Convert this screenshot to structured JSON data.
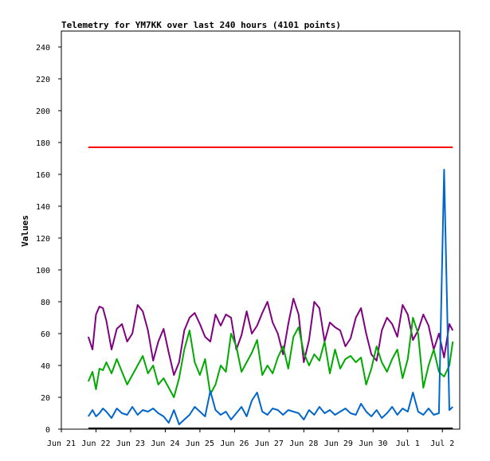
{
  "chart_data": {
    "type": "line",
    "title": "Telemetry for YM7KK over last 240 hours (4101 points)",
    "xlabel": "",
    "ylabel": "Values",
    "ylim": [
      0,
      250
    ],
    "y_ticks": [
      0,
      20,
      40,
      60,
      80,
      100,
      120,
      140,
      160,
      180,
      200,
      220,
      240
    ],
    "x_ticks": [
      "Jun 21",
      "Jun 22",
      "Jun 23",
      "Jun 24",
      "Jun 25",
      "Jun 26",
      "Jun 27",
      "Jun 28",
      "Jun 29",
      "Jun 30",
      "Jul 1",
      "Jul 2"
    ],
    "x_unit": "days from Jun 21 00:00",
    "xlim": [
      0,
      11.5
    ],
    "grid": false,
    "legend": "none",
    "series": [
      {
        "color": "#ff0000",
        "x": [
          0.78,
          11.3
        ],
        "values": [
          177,
          177
        ]
      },
      {
        "color": "#800080",
        "x": [
          0.78,
          0.9,
          1.0,
          1.1,
          1.2,
          1.3,
          1.45,
          1.6,
          1.75,
          1.9,
          2.05,
          2.2,
          2.35,
          2.5,
          2.65,
          2.8,
          2.95,
          3.1,
          3.25,
          3.4,
          3.55,
          3.7,
          3.85,
          4.0,
          4.15,
          4.3,
          4.45,
          4.6,
          4.75,
          4.9,
          5.05,
          5.2,
          5.35,
          5.5,
          5.65,
          5.8,
          5.95,
          6.1,
          6.25,
          6.4,
          6.55,
          6.7,
          6.85,
          7.0,
          7.15,
          7.3,
          7.45,
          7.6,
          7.75,
          7.9,
          8.05,
          8.2,
          8.35,
          8.5,
          8.65,
          8.8,
          8.95,
          9.1,
          9.25,
          9.4,
          9.55,
          9.7,
          9.85,
          10.0,
          10.15,
          10.3,
          10.45,
          10.6,
          10.75,
          10.9,
          11.05,
          11.2,
          11.3
        ],
        "values": [
          58,
          50,
          72,
          77,
          76,
          68,
          50,
          63,
          66,
          55,
          60,
          78,
          74,
          62,
          43,
          55,
          63,
          48,
          34,
          42,
          62,
          70,
          73,
          66,
          58,
          55,
          72,
          65,
          72,
          70,
          50,
          59,
          74,
          60,
          65,
          73,
          80,
          67,
          60,
          47,
          66,
          82,
          72,
          42,
          56,
          80,
          76,
          55,
          67,
          64,
          62,
          52,
          57,
          70,
          76,
          60,
          47,
          43,
          62,
          70,
          66,
          58,
          78,
          72,
          56,
          62,
          72,
          65,
          50,
          60,
          45,
          66,
          62
        ]
      },
      {
        "color": "#00aa00",
        "x": [
          0.78,
          0.9,
          1.0,
          1.1,
          1.2,
          1.3,
          1.45,
          1.6,
          1.75,
          1.9,
          2.05,
          2.2,
          2.35,
          2.5,
          2.65,
          2.8,
          2.95,
          3.1,
          3.25,
          3.4,
          3.55,
          3.7,
          3.85,
          4.0,
          4.15,
          4.3,
          4.45,
          4.6,
          4.75,
          4.9,
          5.05,
          5.2,
          5.35,
          5.5,
          5.65,
          5.8,
          5.95,
          6.1,
          6.25,
          6.4,
          6.55,
          6.7,
          6.85,
          7.0,
          7.15,
          7.3,
          7.45,
          7.6,
          7.75,
          7.9,
          8.05,
          8.2,
          8.35,
          8.5,
          8.65,
          8.8,
          8.95,
          9.1,
          9.25,
          9.4,
          9.55,
          9.7,
          9.85,
          10.0,
          10.15,
          10.3,
          10.45,
          10.6,
          10.75,
          10.9,
          11.05,
          11.2,
          11.3
        ],
        "values": [
          30,
          36,
          25,
          38,
          37,
          42,
          35,
          44,
          36,
          28,
          34,
          40,
          46,
          35,
          40,
          28,
          32,
          26,
          20,
          32,
          50,
          62,
          42,
          34,
          44,
          22,
          28,
          40,
          36,
          60,
          52,
          36,
          42,
          48,
          56,
          34,
          40,
          35,
          45,
          52,
          38,
          58,
          64,
          48,
          40,
          47,
          43,
          55,
          35,
          50,
          38,
          44,
          46,
          42,
          45,
          28,
          38,
          52,
          42,
          36,
          44,
          50,
          32,
          44,
          70,
          60,
          26,
          40,
          50,
          36,
          33,
          40,
          55
        ]
      },
      {
        "color": "#0066cc",
        "x": [
          0.78,
          0.9,
          1.0,
          1.1,
          1.2,
          1.3,
          1.45,
          1.6,
          1.75,
          1.9,
          2.05,
          2.2,
          2.35,
          2.5,
          2.65,
          2.8,
          2.95,
          3.1,
          3.25,
          3.4,
          3.55,
          3.7,
          3.85,
          4.0,
          4.15,
          4.3,
          4.45,
          4.6,
          4.75,
          4.9,
          5.05,
          5.2,
          5.35,
          5.5,
          5.65,
          5.8,
          5.95,
          6.1,
          6.25,
          6.4,
          6.55,
          6.7,
          6.85,
          7.0,
          7.15,
          7.3,
          7.45,
          7.6,
          7.75,
          7.9,
          8.05,
          8.2,
          8.35,
          8.5,
          8.65,
          8.8,
          8.95,
          9.1,
          9.25,
          9.4,
          9.55,
          9.7,
          9.85,
          10.0,
          10.15,
          10.3,
          10.45,
          10.6,
          10.75,
          10.9,
          11.05,
          11.2,
          11.3
        ],
        "values": [
          8,
          12,
          8,
          10,
          13,
          11,
          7,
          13,
          10,
          9,
          14,
          9,
          12,
          11,
          13,
          10,
          8,
          4,
          12,
          3,
          6,
          9,
          14,
          11,
          8,
          24,
          12,
          9,
          11,
          6,
          10,
          14,
          8,
          18,
          23,
          11,
          9,
          13,
          12,
          9,
          12,
          11,
          10,
          6,
          12,
          9,
          14,
          10,
          12,
          9,
          11,
          13,
          10,
          9,
          16,
          11,
          8,
          12,
          7,
          10,
          14,
          9,
          13,
          11,
          23,
          11,
          9,
          13,
          9,
          10,
          163,
          12,
          14
        ]
      }
    ]
  }
}
